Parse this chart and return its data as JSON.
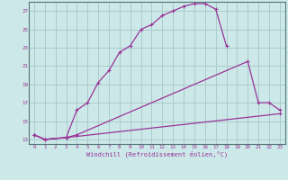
{
  "xlabel": "Windchill (Refroidissement éolien,°C)",
  "bg_color": "#cce8e8",
  "grid_color": "#aacccc",
  "line_color": "#993399",
  "xlim": [
    -0.5,
    23.5
  ],
  "ylim": [
    12.5,
    28.0
  ],
  "yticks": [
    13,
    15,
    17,
    19,
    21,
    23,
    25,
    27
  ],
  "xticks": [
    0,
    1,
    2,
    3,
    4,
    5,
    6,
    7,
    8,
    9,
    10,
    11,
    12,
    13,
    14,
    15,
    16,
    17,
    18,
    19,
    20,
    21,
    22,
    23
  ],
  "line1_x": [
    0,
    1,
    3,
    4,
    5,
    6,
    7,
    8,
    9,
    10,
    11,
    12,
    13,
    14,
    15,
    16,
    17,
    18
  ],
  "line1_y": [
    13.5,
    13.0,
    13.2,
    16.2,
    17.0,
    19.2,
    20.5,
    22.5,
    23.2,
    25.0,
    25.5,
    26.5,
    27.0,
    27.5,
    27.8,
    27.8,
    27.2,
    23.2
  ],
  "line2_x": [
    0,
    1,
    3,
    4,
    20,
    21,
    22,
    23
  ],
  "line2_y": [
    13.5,
    13.0,
    13.2,
    13.5,
    21.5,
    17.0,
    17.0,
    16.2
  ],
  "line3_x": [
    0,
    1,
    3,
    23
  ],
  "line3_y": [
    13.5,
    13.0,
    13.2,
    15.8
  ]
}
